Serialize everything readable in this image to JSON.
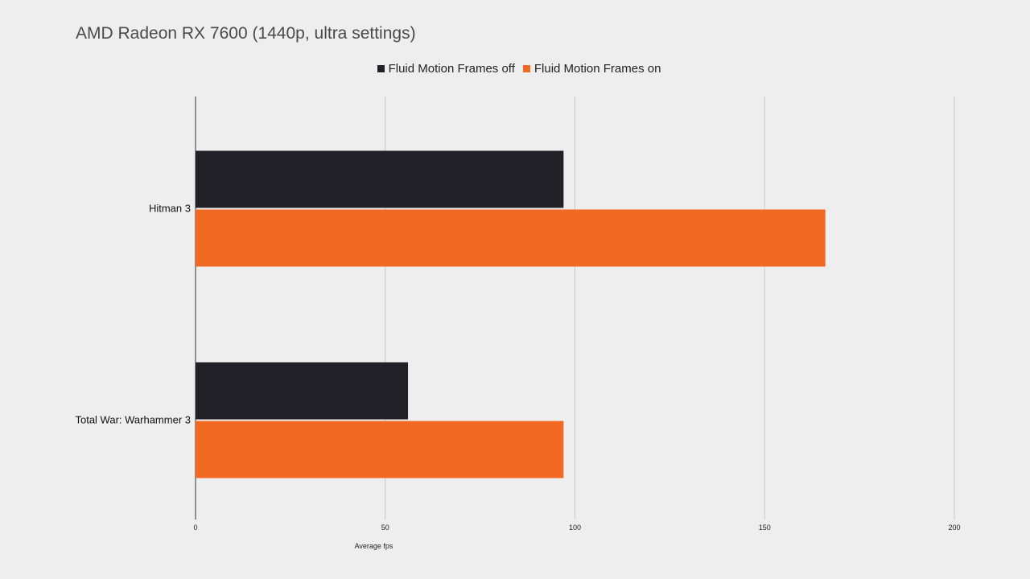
{
  "chart_data": {
    "type": "bar",
    "orientation": "horizontal",
    "title": "AMD Radeon RX 7600 (1440p, ultra settings)",
    "xlabel": "Average fps",
    "ylabel": "",
    "xlim": [
      0,
      200
    ],
    "xticks": [
      "0",
      "50",
      "100",
      "150",
      "200"
    ],
    "grid": true,
    "legend_position": "top-center",
    "categories": [
      "Hitman 3",
      "Total War: Warhammer 3"
    ],
    "series": [
      {
        "name": "Fluid Motion Frames off",
        "color": "#222128",
        "values": [
          97,
          56
        ]
      },
      {
        "name": "Fluid Motion Frames on",
        "color": "#f26924",
        "values": [
          166,
          97
        ]
      }
    ]
  }
}
